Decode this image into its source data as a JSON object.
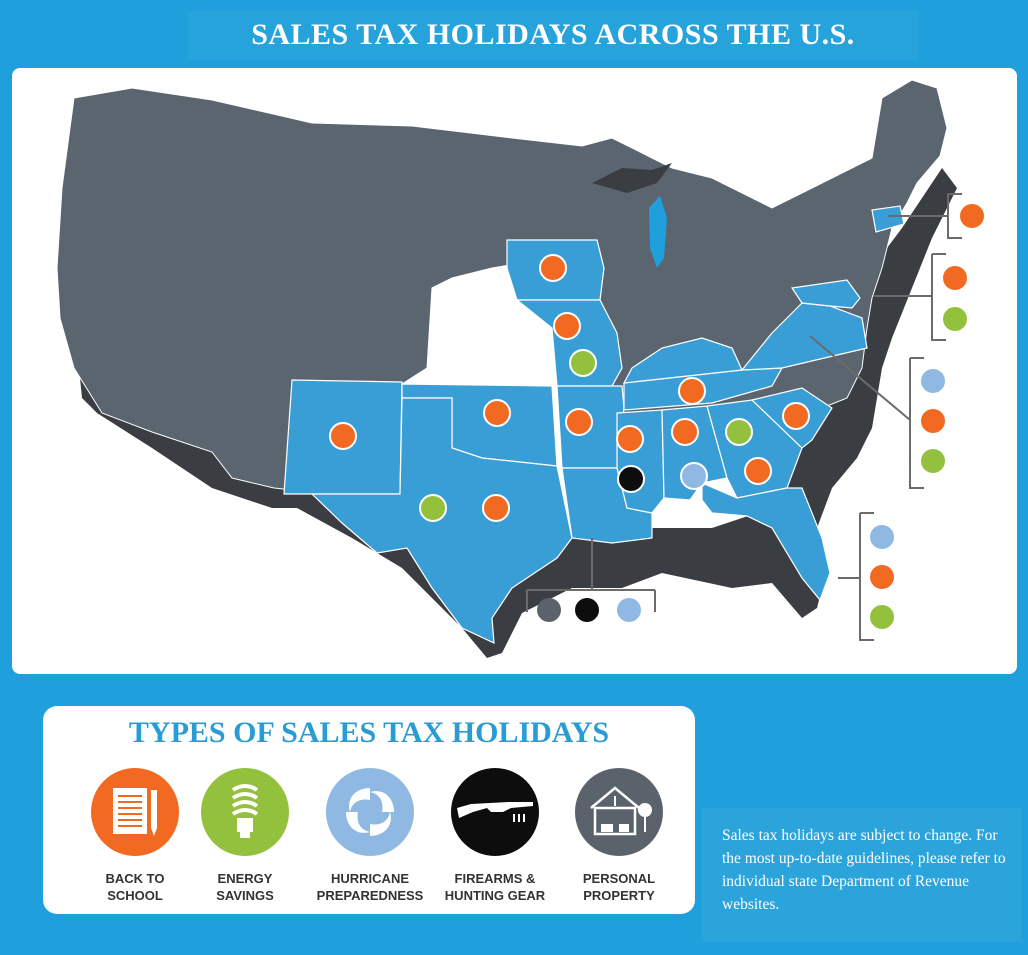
{
  "title": "SALES TAX HOLIDAYS ACROSS THE U.S.",
  "colors": {
    "background": "#1fa0dc",
    "state_gray": "#5b6570",
    "state_blue": "#3a9ed6",
    "shadow": "#3a3d42",
    "back_to_school": "#f26a21",
    "energy_savings": "#93c13e",
    "hurricane_preparedness": "#8fb8e2",
    "firearms_hunting_gear": "#0d0d0d",
    "personal_property": "#5a636c"
  },
  "legend": {
    "title": "TYPES OF SALES TAX HOLIDAYS",
    "items": [
      {
        "label": "BACK TO\nSCHOOL",
        "color": "#f26a21",
        "icon": "notebook-pencil-icon"
      },
      {
        "label": "ENERGY\nSAVINGS",
        "color": "#93c13e",
        "icon": "light-bulb-icon"
      },
      {
        "label": "HURRICANE\nPREPAREDNESS",
        "color": "#8fb8e2",
        "icon": "hurricane-icon"
      },
      {
        "label": "FIREARMS &\nHUNTING GEAR",
        "color": "#0d0d0d",
        "icon": "rifle-icon"
      },
      {
        "label": "PERSONAL\nPROPERTY",
        "color": "#5a636c",
        "icon": "house-furniture-icon"
      }
    ]
  },
  "note": "Sales tax holidays are subject to change. For the most up-to-date guidelines, please refer to individual state Department of Revenue websites."
}
